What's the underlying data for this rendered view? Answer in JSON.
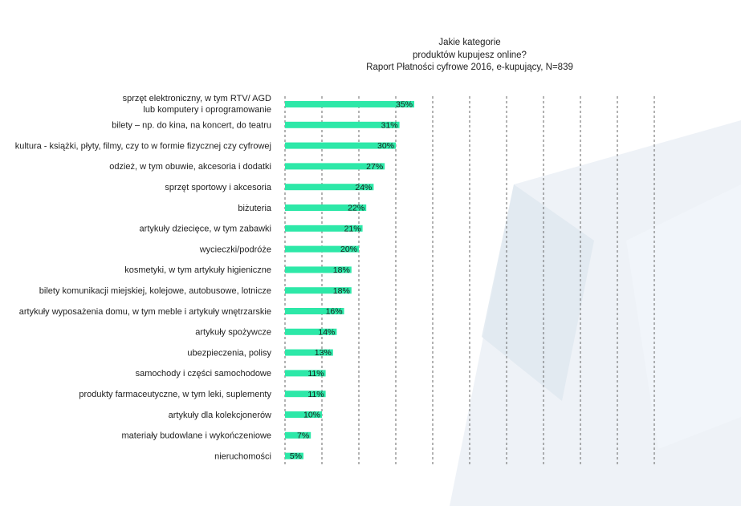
{
  "colors": {
    "bar": "#2de8a8",
    "gridline": "#666666",
    "text": "#222222",
    "background_shape": "#e8eef4"
  },
  "chart_data": {
    "type": "bar",
    "orientation": "horizontal",
    "title_lines": [
      "Jakie kategorie",
      "produktów kupujesz online?",
      "Raport Płatności cyfrowe 2016, e-kupujący, N=839"
    ],
    "categories": [
      [
        "sprzęt elektroniczny, w tym RTV/ AGD",
        "lub komputery i oprogramowanie"
      ],
      [
        "bilety – np. do kina, na koncert, do teatru"
      ],
      [
        "kultura - książki, płyty, filmy, czy to w formie fizycznej czy cyfrowej"
      ],
      [
        "odzież, w tym obuwie, akcesoria i dodatki"
      ],
      [
        "sprzęt sportowy i akcesoria"
      ],
      [
        "biżuteria"
      ],
      [
        "artykuły dziecięce, w tym zabawki"
      ],
      [
        "wycieczki/podróże"
      ],
      [
        "kosmetyki, w tym artykuły higieniczne"
      ],
      [
        "bilety komunikacji miejskiej, kolejowe, autobusowe, lotnicze"
      ],
      [
        "artykuły wyposażenia domu, w tym meble i artykuły wnętrzarskie"
      ],
      [
        "artykuły spożywcze"
      ],
      [
        "ubezpieczenia, polisy"
      ],
      [
        "samochody i części samochodowe"
      ],
      [
        "produkty farmaceutyczne, w tym leki, suplementy"
      ],
      [
        "artykuły dla kolekcjonerów"
      ],
      [
        "materiały budowlane i wykończeniowe"
      ],
      [
        "nieruchomości"
      ]
    ],
    "values": [
      35,
      31,
      30,
      27,
      24,
      22,
      21,
      20,
      18,
      18,
      16,
      14,
      13,
      11,
      11,
      10,
      7,
      5
    ],
    "value_labels": [
      "35%",
      "31%",
      "30%",
      "27%",
      "24%",
      "22%",
      "21%",
      "20%",
      "18%",
      "18%",
      "16%",
      "14%",
      "13%",
      "11%",
      "11%",
      "10%",
      "7%",
      "5%"
    ],
    "xlim": [
      0,
      100
    ],
    "grid": true,
    "legend": false
  }
}
